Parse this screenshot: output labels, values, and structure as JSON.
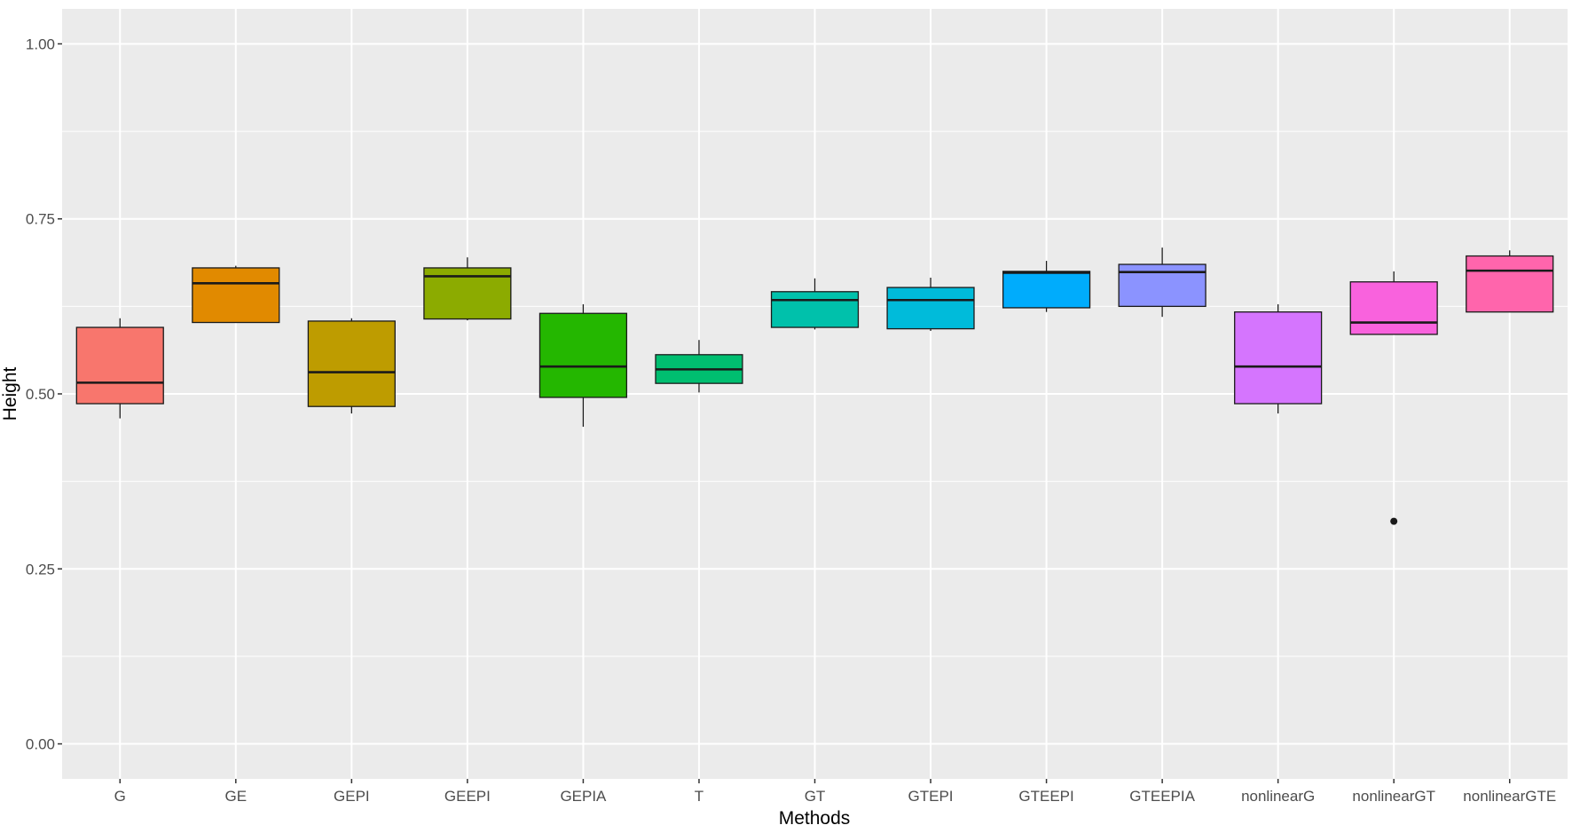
{
  "chart_data": {
    "type": "boxplot",
    "title": "",
    "xlabel": "Methods",
    "ylabel": "Height",
    "ylim": [
      -0.05,
      1.05
    ],
    "y_ticks": [
      0.0,
      0.25,
      0.5,
      0.75,
      1.0
    ],
    "y_tick_labels": [
      "0.00",
      "0.25",
      "0.50",
      "0.75",
      "1.00"
    ],
    "grid": true,
    "legend": "none",
    "categories": [
      "G",
      "GE",
      "GEPI",
      "GEEPI",
      "GEPIA",
      "T",
      "GT",
      "GTEPI",
      "GTEEPI",
      "GTEEPIA",
      "nonlinearG",
      "nonlinearGT",
      "nonlinearGTE"
    ],
    "boxes": [
      {
        "category": "G",
        "whisker_low": 0.465,
        "q1": 0.486,
        "median": 0.516,
        "q3": 0.595,
        "whisker_high": 0.608,
        "outliers": [],
        "color": "#F8766D"
      },
      {
        "category": "GE",
        "whisker_low": 0.602,
        "q1": 0.602,
        "median": 0.658,
        "q3": 0.68,
        "whisker_high": 0.683,
        "outliers": [],
        "color": "#E18A00"
      },
      {
        "category": "GEPI",
        "whisker_low": 0.472,
        "q1": 0.482,
        "median": 0.531,
        "q3": 0.604,
        "whisker_high": 0.608,
        "outliers": [],
        "color": "#BE9C00"
      },
      {
        "category": "GEEPI",
        "whisker_low": 0.605,
        "q1": 0.607,
        "median": 0.668,
        "q3": 0.68,
        "whisker_high": 0.695,
        "outliers": [],
        "color": "#8CAB00"
      },
      {
        "category": "GEPIA",
        "whisker_low": 0.453,
        "q1": 0.495,
        "median": 0.539,
        "q3": 0.615,
        "whisker_high": 0.628,
        "outliers": [],
        "color": "#24B700"
      },
      {
        "category": "T",
        "whisker_low": 0.502,
        "q1": 0.515,
        "median": 0.535,
        "q3": 0.556,
        "whisker_high": 0.577,
        "outliers": [],
        "color": "#00BE70"
      },
      {
        "category": "GT",
        "whisker_low": 0.592,
        "q1": 0.595,
        "median": 0.634,
        "q3": 0.646,
        "whisker_high": 0.665,
        "outliers": [],
        "color": "#00C1AB"
      },
      {
        "category": "GTEPI",
        "whisker_low": 0.59,
        "q1": 0.593,
        "median": 0.634,
        "q3": 0.652,
        "whisker_high": 0.666,
        "outliers": [],
        "color": "#00BBDA"
      },
      {
        "category": "GTEEPI",
        "whisker_low": 0.617,
        "q1": 0.623,
        "median": 0.673,
        "q3": 0.675,
        "whisker_high": 0.69,
        "outliers": [],
        "color": "#00ACFC"
      },
      {
        "category": "GTEEPIA",
        "whisker_low": 0.61,
        "q1": 0.625,
        "median": 0.674,
        "q3": 0.685,
        "whisker_high": 0.709,
        "outliers": [],
        "color": "#8B93FF"
      },
      {
        "category": "nonlinearG",
        "whisker_low": 0.472,
        "q1": 0.486,
        "median": 0.539,
        "q3": 0.617,
        "whisker_high": 0.628,
        "outliers": [],
        "color": "#D575FE"
      },
      {
        "category": "nonlinearGT",
        "whisker_low": 0.585,
        "q1": 0.585,
        "median": 0.602,
        "q3": 0.66,
        "whisker_high": 0.675,
        "outliers": [
          0.318
        ],
        "color": "#F962DD"
      },
      {
        "category": "nonlinearGTE",
        "whisker_low": 0.617,
        "q1": 0.617,
        "median": 0.676,
        "q3": 0.697,
        "whisker_high": 0.705,
        "outliers": [],
        "color": "#FF65AC"
      }
    ]
  },
  "colors": {
    "panel_background": "#EBEBEB",
    "grid_major": "#FFFFFF",
    "box_outline": "#1A1A1A",
    "tick_text": "#4D4D4D"
  }
}
